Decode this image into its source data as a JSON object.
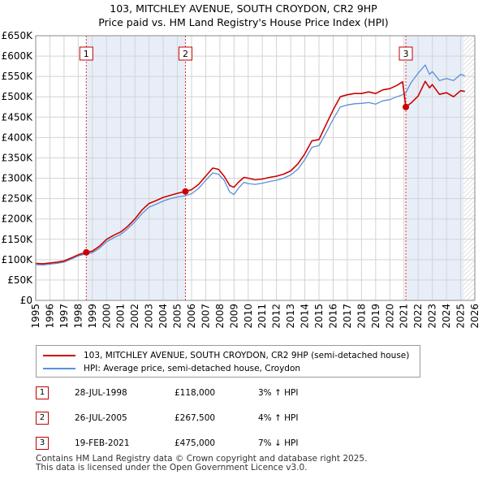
{
  "title_line1": "103, MITCHLEY AVENUE, SOUTH CROYDON, CR2 9HP",
  "title_line2": "Price paid vs. HM Land Registry's House Price Index (HPI)",
  "colors": {
    "property": "#cc0000",
    "hpi": "#5b8fd6",
    "shade": "#e8eef8",
    "hatch": "#999999"
  },
  "chart_data": {
    "type": "line",
    "title": "103, MITCHLEY AVENUE, SOUTH CROYDON, CR2 9HP — Price paid vs. HM Land Registry's House Price Index (HPI)",
    "xlabel": "",
    "ylabel": "",
    "xlim": [
      1995.0,
      2026.0
    ],
    "ylim": [
      0,
      650000
    ],
    "x_ticks": [
      1995,
      1996,
      1997,
      1998,
      1999,
      2000,
      2001,
      2002,
      2003,
      2004,
      2005,
      2006,
      2007,
      2008,
      2009,
      2010,
      2011,
      2012,
      2013,
      2014,
      2015,
      2016,
      2017,
      2018,
      2019,
      2020,
      2021,
      2022,
      2023,
      2024,
      2025,
      2026
    ],
    "x_tick_labels": [
      "1995",
      "1996",
      "1997",
      "1998",
      "1999",
      "2000",
      "2001",
      "2002",
      "2003",
      "2004",
      "2005",
      "2006",
      "2007",
      "2008",
      "2009",
      "2010",
      "2011",
      "2012",
      "2013",
      "2014",
      "2015",
      "2016",
      "2017",
      "2018",
      "2019",
      "2020",
      "2021",
      "2022",
      "2023",
      "2024",
      "2025",
      "2026"
    ],
    "y_ticks": [
      0,
      50000,
      100000,
      150000,
      200000,
      250000,
      300000,
      350000,
      400000,
      450000,
      500000,
      550000,
      600000,
      650000
    ],
    "y_tick_labels": [
      "£0",
      "£50K",
      "£100K",
      "£150K",
      "£200K",
      "£250K",
      "£300K",
      "£350K",
      "£400K",
      "£450K",
      "£500K",
      "£550K",
      "£600K",
      "£650K"
    ],
    "future_from": 2025.2,
    "series": [
      {
        "name": "103, MITCHLEY AVENUE, SOUTH CROYDON, CR2 9HP (semi-detached house)",
        "x": [
          1995.0,
          1995.5,
          1996.0,
          1996.5,
          1997.0,
          1997.5,
          1998.0,
          1998.57,
          1999.0,
          1999.5,
          2000.0,
          2000.5,
          2001.0,
          2001.5,
          2002.0,
          2002.5,
          2003.0,
          2003.5,
          2004.0,
          2004.5,
          2005.0,
          2005.57,
          2006.0,
          2006.5,
          2007.0,
          2007.5,
          2007.9,
          2008.3,
          2008.7,
          2009.0,
          2009.3,
          2009.7,
          2010.0,
          2010.5,
          2011.0,
          2011.5,
          2012.0,
          2012.5,
          2013.0,
          2013.5,
          2014.0,
          2014.5,
          2015.0,
          2015.5,
          2016.0,
          2016.5,
          2017.0,
          2017.5,
          2018.0,
          2018.5,
          2019.0,
          2019.5,
          2020.0,
          2020.5,
          2020.9,
          2021.13,
          2021.5,
          2022.0,
          2022.5,
          2022.8,
          2023.0,
          2023.5,
          2024.0,
          2024.5,
          2025.0,
          2025.3
        ],
        "values": [
          91000,
          90000,
          92000,
          94000,
          97000,
          104000,
          112000,
          118000,
          121000,
          133000,
          150000,
          160000,
          168000,
          182000,
          200000,
          222000,
          238000,
          245000,
          253000,
          258000,
          263000,
          267500,
          272000,
          285000,
          305000,
          325000,
          322000,
          305000,
          282000,
          278000,
          290000,
          302000,
          300000,
          296000,
          298000,
          302000,
          305000,
          310000,
          318000,
          335000,
          360000,
          392000,
          395000,
          432000,
          468000,
          500000,
          505000,
          508000,
          508000,
          512000,
          508000,
          517000,
          520000,
          528000,
          537000,
          475000,
          485000,
          502000,
          538000,
          522000,
          530000,
          506000,
          510000,
          500000,
          515000,
          513000
        ]
      },
      {
        "name": "HPI: Average price, semi-detached house, Croydon",
        "x": [
          1995.0,
          1995.5,
          1996.0,
          1996.5,
          1997.0,
          1997.5,
          1998.0,
          1998.57,
          1999.0,
          1999.5,
          2000.0,
          2000.5,
          2001.0,
          2001.5,
          2002.0,
          2002.5,
          2003.0,
          2003.5,
          2004.0,
          2004.5,
          2005.0,
          2005.57,
          2006.0,
          2006.5,
          2007.0,
          2007.5,
          2007.9,
          2008.3,
          2008.7,
          2009.0,
          2009.3,
          2009.7,
          2010.0,
          2010.5,
          2011.0,
          2011.5,
          2012.0,
          2012.5,
          2013.0,
          2013.5,
          2014.0,
          2014.5,
          2015.0,
          2015.5,
          2016.0,
          2016.5,
          2017.0,
          2017.5,
          2018.0,
          2018.5,
          2019.0,
          2019.5,
          2020.0,
          2020.5,
          2020.9,
          2021.13,
          2021.5,
          2022.0,
          2022.5,
          2022.8,
          2023.0,
          2023.5,
          2024.0,
          2024.5,
          2025.0,
          2025.3
        ],
        "values": [
          88000,
          87000,
          89000,
          91000,
          94000,
          101000,
          109000,
          114500,
          117000,
          128000,
          144000,
          154000,
          162000,
          176000,
          193000,
          213000,
          229000,
          236000,
          244000,
          250000,
          254000,
          257000,
          262000,
          275000,
          295000,
          313000,
          310000,
          295000,
          266000,
          260000,
          275000,
          290000,
          287000,
          285000,
          288000,
          292000,
          295000,
          300000,
          308000,
          322000,
          346000,
          376000,
          380000,
          412000,
          445000,
          475000,
          480000,
          483000,
          484000,
          486000,
          482000,
          490000,
          493000,
          500000,
          505000,
          510000,
          535000,
          558000,
          578000,
          555000,
          562000,
          540000,
          545000,
          540000,
          555000,
          552000
        ]
      }
    ],
    "transactions": [
      {
        "label": "1",
        "x": 1998.57,
        "value": 118000
      },
      {
        "label": "2",
        "x": 2005.57,
        "value": 267500
      },
      {
        "label": "3",
        "x": 2021.13,
        "value": 475000
      }
    ],
    "legend_position": "bottom"
  },
  "legend": {
    "property_label": "103, MITCHLEY AVENUE, SOUTH CROYDON, CR2 9HP (semi-detached house)",
    "hpi_label": "HPI: Average price, semi-detached house, Croydon"
  },
  "transactions_table": [
    {
      "num": "1",
      "date": "28-JUL-1998",
      "price": "£118,000",
      "hpi": "3% ↑ HPI"
    },
    {
      "num": "2",
      "date": "26-JUL-2005",
      "price": "£267,500",
      "hpi": "4% ↑ HPI"
    },
    {
      "num": "3",
      "date": "19-FEB-2021",
      "price": "£475,000",
      "hpi": "7% ↓ HPI"
    }
  ],
  "footer_line1": "Contains HM Land Registry data © Crown copyright and database right 2025.",
  "footer_line2": "This data is licensed under the Open Government Licence v3.0."
}
